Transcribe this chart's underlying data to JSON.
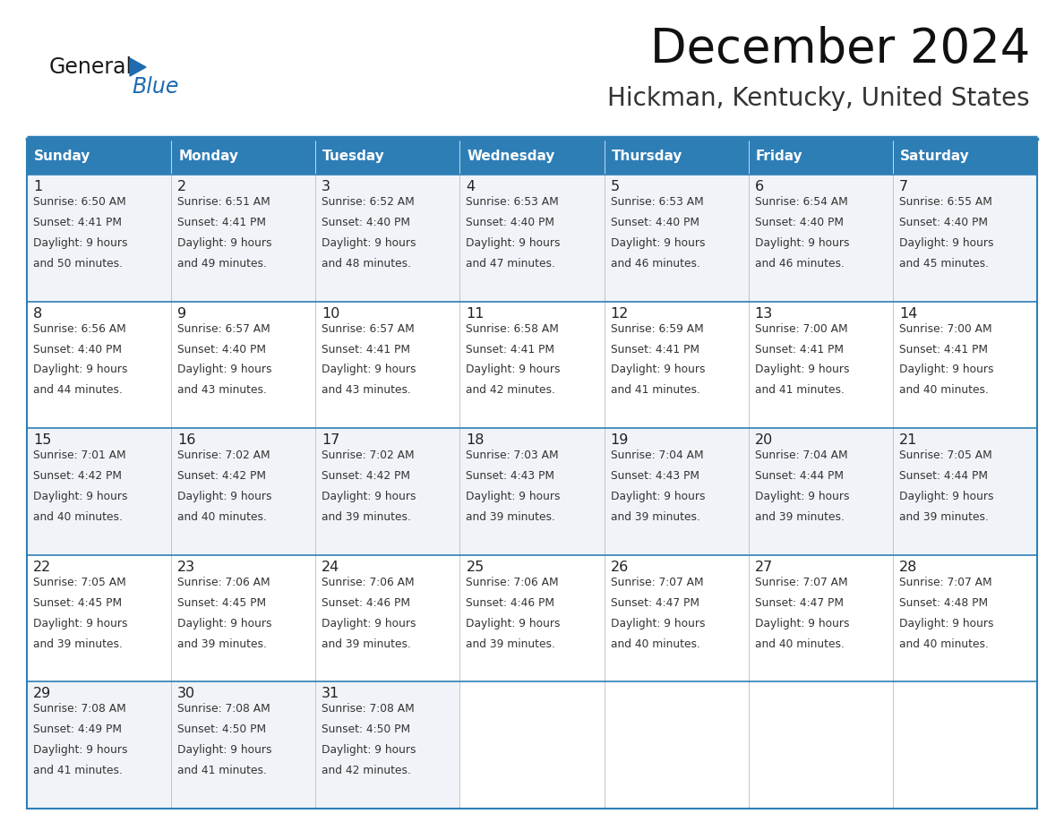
{
  "title": "December 2024",
  "subtitle": "Hickman, Kentucky, United States",
  "days_of_week": [
    "Sunday",
    "Monday",
    "Tuesday",
    "Wednesday",
    "Thursday",
    "Friday",
    "Saturday"
  ],
  "header_bg": "#2E7EB6",
  "header_text_color": "#FFFFFF",
  "cell_bg_odd": "#F0F4F8",
  "cell_bg_even": "#FFFFFF",
  "border_color": "#2E7EB6",
  "day_num_color": "#222222",
  "cell_text_color": "#333333",
  "logo_black": "#1a1a1a",
  "logo_blue": "#1E6BB0",
  "calendar_data": [
    [
      {
        "day": 1,
        "sunrise": "6:50 AM",
        "sunset": "4:41 PM",
        "daylight_h": "9 hours",
        "daylight_m": "50 minutes."
      },
      {
        "day": 2,
        "sunrise": "6:51 AM",
        "sunset": "4:41 PM",
        "daylight_h": "9 hours",
        "daylight_m": "49 minutes."
      },
      {
        "day": 3,
        "sunrise": "6:52 AM",
        "sunset": "4:40 PM",
        "daylight_h": "9 hours",
        "daylight_m": "48 minutes."
      },
      {
        "day": 4,
        "sunrise": "6:53 AM",
        "sunset": "4:40 PM",
        "daylight_h": "9 hours",
        "daylight_m": "47 minutes."
      },
      {
        "day": 5,
        "sunrise": "6:53 AM",
        "sunset": "4:40 PM",
        "daylight_h": "9 hours",
        "daylight_m": "46 minutes."
      },
      {
        "day": 6,
        "sunrise": "6:54 AM",
        "sunset": "4:40 PM",
        "daylight_h": "9 hours",
        "daylight_m": "46 minutes."
      },
      {
        "day": 7,
        "sunrise": "6:55 AM",
        "sunset": "4:40 PM",
        "daylight_h": "9 hours",
        "daylight_m": "45 minutes."
      }
    ],
    [
      {
        "day": 8,
        "sunrise": "6:56 AM",
        "sunset": "4:40 PM",
        "daylight_h": "9 hours",
        "daylight_m": "44 minutes."
      },
      {
        "day": 9,
        "sunrise": "6:57 AM",
        "sunset": "4:40 PM",
        "daylight_h": "9 hours",
        "daylight_m": "43 minutes."
      },
      {
        "day": 10,
        "sunrise": "6:57 AM",
        "sunset": "4:41 PM",
        "daylight_h": "9 hours",
        "daylight_m": "43 minutes."
      },
      {
        "day": 11,
        "sunrise": "6:58 AM",
        "sunset": "4:41 PM",
        "daylight_h": "9 hours",
        "daylight_m": "42 minutes."
      },
      {
        "day": 12,
        "sunrise": "6:59 AM",
        "sunset": "4:41 PM",
        "daylight_h": "9 hours",
        "daylight_m": "41 minutes."
      },
      {
        "day": 13,
        "sunrise": "7:00 AM",
        "sunset": "4:41 PM",
        "daylight_h": "9 hours",
        "daylight_m": "41 minutes."
      },
      {
        "day": 14,
        "sunrise": "7:00 AM",
        "sunset": "4:41 PM",
        "daylight_h": "9 hours",
        "daylight_m": "40 minutes."
      }
    ],
    [
      {
        "day": 15,
        "sunrise": "7:01 AM",
        "sunset": "4:42 PM",
        "daylight_h": "9 hours",
        "daylight_m": "40 minutes."
      },
      {
        "day": 16,
        "sunrise": "7:02 AM",
        "sunset": "4:42 PM",
        "daylight_h": "9 hours",
        "daylight_m": "40 minutes."
      },
      {
        "day": 17,
        "sunrise": "7:02 AM",
        "sunset": "4:42 PM",
        "daylight_h": "9 hours",
        "daylight_m": "39 minutes."
      },
      {
        "day": 18,
        "sunrise": "7:03 AM",
        "sunset": "4:43 PM",
        "daylight_h": "9 hours",
        "daylight_m": "39 minutes."
      },
      {
        "day": 19,
        "sunrise": "7:04 AM",
        "sunset": "4:43 PM",
        "daylight_h": "9 hours",
        "daylight_m": "39 minutes."
      },
      {
        "day": 20,
        "sunrise": "7:04 AM",
        "sunset": "4:44 PM",
        "daylight_h": "9 hours",
        "daylight_m": "39 minutes."
      },
      {
        "day": 21,
        "sunrise": "7:05 AM",
        "sunset": "4:44 PM",
        "daylight_h": "9 hours",
        "daylight_m": "39 minutes."
      }
    ],
    [
      {
        "day": 22,
        "sunrise": "7:05 AM",
        "sunset": "4:45 PM",
        "daylight_h": "9 hours",
        "daylight_m": "39 minutes."
      },
      {
        "day": 23,
        "sunrise": "7:06 AM",
        "sunset": "4:45 PM",
        "daylight_h": "9 hours",
        "daylight_m": "39 minutes."
      },
      {
        "day": 24,
        "sunrise": "7:06 AM",
        "sunset": "4:46 PM",
        "daylight_h": "9 hours",
        "daylight_m": "39 minutes."
      },
      {
        "day": 25,
        "sunrise": "7:06 AM",
        "sunset": "4:46 PM",
        "daylight_h": "9 hours",
        "daylight_m": "39 minutes."
      },
      {
        "day": 26,
        "sunrise": "7:07 AM",
        "sunset": "4:47 PM",
        "daylight_h": "9 hours",
        "daylight_m": "40 minutes."
      },
      {
        "day": 27,
        "sunrise": "7:07 AM",
        "sunset": "4:47 PM",
        "daylight_h": "9 hours",
        "daylight_m": "40 minutes."
      },
      {
        "day": 28,
        "sunrise": "7:07 AM",
        "sunset": "4:48 PM",
        "daylight_h": "9 hours",
        "daylight_m": "40 minutes."
      }
    ],
    [
      {
        "day": 29,
        "sunrise": "7:08 AM",
        "sunset": "4:49 PM",
        "daylight_h": "9 hours",
        "daylight_m": "41 minutes."
      },
      {
        "day": 30,
        "sunrise": "7:08 AM",
        "sunset": "4:50 PM",
        "daylight_h": "9 hours",
        "daylight_m": "41 minutes."
      },
      {
        "day": 31,
        "sunrise": "7:08 AM",
        "sunset": "4:50 PM",
        "daylight_h": "9 hours",
        "daylight_m": "42 minutes."
      },
      null,
      null,
      null,
      null
    ]
  ]
}
